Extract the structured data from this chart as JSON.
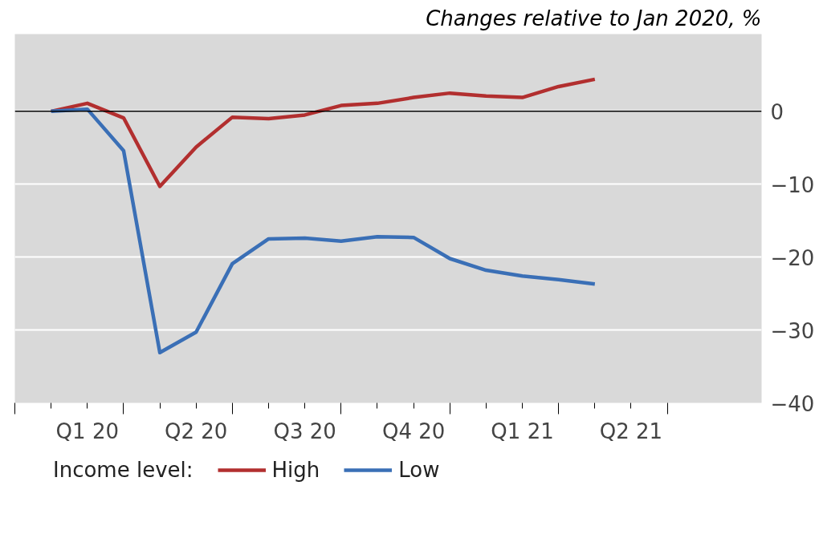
{
  "chart_data": {
    "type": "line",
    "ylabel": "Changes relative to Jan 2020, %",
    "legend_title": "Income level:",
    "categories": [
      null,
      "Q1 20",
      null,
      null,
      "Q2 20",
      null,
      null,
      "Q3 20",
      null,
      null,
      "Q4 20",
      null,
      null,
      "Q1 21",
      null,
      null,
      "Q2 21",
      null
    ],
    "series": [
      {
        "name": "High",
        "color": "#b22f2f",
        "values": [
          0,
          1.1,
          -0.9,
          -10.3,
          -4.9,
          -0.8,
          -1.0,
          -0.5,
          0.8,
          1.1,
          1.9,
          2.5,
          2.1,
          1.9,
          3.4,
          4.4,
          null,
          null
        ]
      },
      {
        "name": "Low",
        "color": "#3a6fb6",
        "values": [
          0,
          0.3,
          -5.4,
          -33.1,
          -30.3,
          -20.9,
          -17.5,
          -17.4,
          -17.8,
          -17.2,
          -17.3,
          -20.2,
          -21.8,
          -22.6,
          -23.1,
          -23.7,
          null,
          null
        ]
      }
    ],
    "ylim": [
      -40,
      10.6
    ],
    "yticks": [
      0,
      {
        "value": -10,
        "label": "−10"
      },
      {
        "value": -20,
        "label": "−20"
      },
      {
        "value": -30,
        "label": "−30"
      },
      {
        "value": -40,
        "label": "−40"
      }
    ],
    "ref_lines": [
      {
        "axis": "y",
        "value": 0,
        "color": "#000000"
      }
    ],
    "grid": "y",
    "legend": "bottom",
    "marker": "none",
    "line_style": "solid"
  }
}
